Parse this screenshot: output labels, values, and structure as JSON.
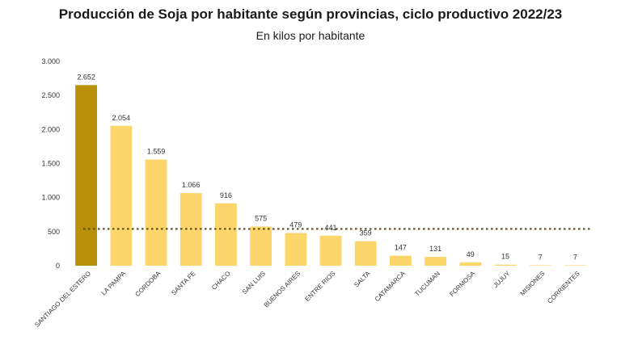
{
  "chart_data": {
    "type": "bar",
    "title": "Producción de Soja por habitante según provincias, ciclo productivo 2022/23",
    "subtitle": "En kilos por habitante",
    "categories": [
      "SANTIAGO DEL ESTERO",
      "LA PAMPA",
      "CORDOBA",
      "SANTA FE",
      "CHACO",
      "SAN LUIS",
      "BUENOS AIRES",
      "ENTRE RIOS",
      "SALTA",
      "CATAMARCA",
      "TUCUMAN",
      "FORMOSA",
      "JUJUY",
      "MISIONES",
      "CORRIENTES"
    ],
    "values": [
      2652,
      2054,
      1559,
      1066,
      916,
      575,
      479,
      441,
      359,
      147,
      131,
      49,
      15,
      7,
      7
    ],
    "value_labels": [
      "2.652",
      "2.054",
      "1.559",
      "1.066",
      "916",
      "575",
      "479",
      "441",
      "359",
      "147",
      "131",
      "49",
      "15",
      "7",
      "7"
    ],
    "ylim": [
      0,
      3000
    ],
    "yticks": [
      0,
      500,
      1000,
      1500,
      2000,
      2500,
      3000
    ],
    "ytick_labels": [
      "0",
      "500",
      "1.000",
      "1.500",
      "2.000",
      "2.500",
      "3.000"
    ],
    "reference_line": 540,
    "grid": false,
    "colors": {
      "highlight": "#b8900a",
      "bar": "#fcd66b",
      "reference": "#5a4a1a",
      "border": "#c9a227"
    }
  }
}
